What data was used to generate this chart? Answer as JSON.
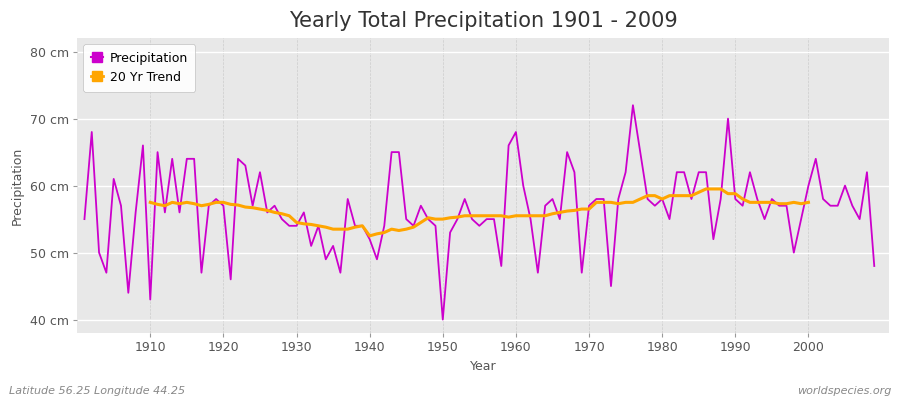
{
  "title": "Yearly Total Precipitation 1901 - 2009",
  "xlabel": "Year",
  "ylabel": "Precipitation",
  "footnote_left": "Latitude 56.25 Longitude 44.25",
  "footnote_right": "worldspecies.org",
  "years": [
    1901,
    1902,
    1903,
    1904,
    1905,
    1906,
    1907,
    1908,
    1909,
    1910,
    1911,
    1912,
    1913,
    1914,
    1915,
    1916,
    1917,
    1918,
    1919,
    1920,
    1921,
    1922,
    1923,
    1924,
    1925,
    1926,
    1927,
    1928,
    1929,
    1930,
    1931,
    1932,
    1933,
    1934,
    1935,
    1936,
    1937,
    1938,
    1939,
    1940,
    1941,
    1942,
    1943,
    1944,
    1945,
    1946,
    1947,
    1948,
    1949,
    1950,
    1951,
    1952,
    1953,
    1954,
    1955,
    1956,
    1957,
    1958,
    1959,
    1960,
    1961,
    1962,
    1963,
    1964,
    1965,
    1966,
    1967,
    1968,
    1969,
    1970,
    1971,
    1972,
    1973,
    1974,
    1975,
    1976,
    1977,
    1978,
    1979,
    1980,
    1981,
    1982,
    1983,
    1984,
    1985,
    1986,
    1987,
    1988,
    1989,
    1990,
    1991,
    1992,
    1993,
    1994,
    1995,
    1996,
    1997,
    1998,
    1999,
    2000,
    2001,
    2002,
    2003,
    2004,
    2005,
    2006,
    2007,
    2008,
    2009
  ],
  "precipitation": [
    55,
    68,
    50,
    47,
    61,
    57,
    44,
    56,
    66,
    43,
    65,
    56,
    64,
    56,
    64,
    64,
    47,
    57,
    58,
    57,
    46,
    64,
    63,
    57,
    62,
    56,
    57,
    55,
    54,
    54,
    56,
    51,
    54,
    49,
    51,
    47,
    58,
    54,
    54,
    52,
    49,
    54,
    65,
    65,
    55,
    54,
    57,
    55,
    54,
    40,
    53,
    55,
    58,
    55,
    54,
    55,
    55,
    48,
    66,
    68,
    60,
    55,
    47,
    57,
    58,
    55,
    65,
    62,
    47,
    57,
    58,
    58,
    45,
    58,
    62,
    72,
    65,
    58,
    57,
    58,
    55,
    62,
    62,
    58,
    62,
    62,
    52,
    58,
    70,
    58,
    57,
    62,
    58,
    55,
    58,
    57,
    57,
    50,
    55,
    60,
    64,
    58,
    57,
    57,
    60,
    57,
    55,
    62,
    48
  ],
  "trend_years": [
    1910,
    1911,
    1912,
    1913,
    1914,
    1915,
    1916,
    1917,
    1918,
    1919,
    1920,
    1921,
    1922,
    1923,
    1924,
    1925,
    1926,
    1927,
    1928,
    1929,
    1930,
    1931,
    1932,
    1933,
    1934,
    1935,
    1936,
    1937,
    1938,
    1939,
    1940,
    1941,
    1942,
    1943,
    1944,
    1945,
    1946,
    1947,
    1948,
    1949,
    1950,
    1951,
    1952,
    1953,
    1954,
    1955,
    1956,
    1957,
    1958,
    1959,
    1960,
    1961,
    1962,
    1963,
    1964,
    1965,
    1966,
    1967,
    1968,
    1969,
    1970,
    1971,
    1972,
    1973,
    1974,
    1975,
    1976,
    1977,
    1978,
    1979,
    1980,
    1981,
    1982,
    1983,
    1984,
    1985,
    1986,
    1987,
    1988,
    1989,
    1990,
    1991,
    1992,
    1993,
    1994,
    1995,
    1996,
    1997,
    1998,
    1999,
    2000
  ],
  "trend": [
    57.5,
    57.2,
    57.0,
    57.5,
    57.3,
    57.5,
    57.3,
    57.0,
    57.2,
    57.5,
    57.5,
    57.2,
    57.1,
    56.8,
    56.7,
    56.5,
    56.3,
    56.0,
    55.8,
    55.5,
    54.5,
    54.3,
    54.2,
    54.0,
    53.8,
    53.5,
    53.5,
    53.5,
    53.8,
    54.0,
    52.5,
    52.8,
    53.0,
    53.5,
    53.3,
    53.5,
    53.8,
    54.5,
    55.2,
    55.0,
    55.0,
    55.2,
    55.3,
    55.5,
    55.5,
    55.5,
    55.5,
    55.5,
    55.5,
    55.3,
    55.5,
    55.5,
    55.5,
    55.5,
    55.5,
    55.8,
    56.0,
    56.2,
    56.3,
    56.5,
    56.5,
    57.5,
    57.5,
    57.5,
    57.3,
    57.5,
    57.5,
    58.0,
    58.5,
    58.5,
    58.0,
    58.5,
    58.5,
    58.5,
    58.5,
    59.0,
    59.5,
    59.5,
    59.5,
    58.8,
    58.8,
    58.0,
    57.5,
    57.5,
    57.5,
    57.5,
    57.3,
    57.3,
    57.5,
    57.3,
    57.5
  ],
  "precip_color": "#CC00CC",
  "trend_color": "#FFA500",
  "bg_color": "#E8E8E8",
  "grid_color_h": "#FFFFFF",
  "grid_color_v": "#CCCCCC",
  "fig_bg": "#FFFFFF",
  "ylim": [
    38,
    82
  ],
  "yticks": [
    40,
    50,
    60,
    70,
    80
  ],
  "ytick_labels": [
    "40 cm",
    "50 cm",
    "60 cm",
    "70 cm",
    "80 cm"
  ],
  "xticks": [
    1910,
    1920,
    1930,
    1940,
    1950,
    1960,
    1970,
    1980,
    1990,
    2000
  ],
  "xtick_labels": [
    "1910",
    "1920",
    "1930",
    "1940",
    "1950",
    "1960",
    "1970",
    "1980",
    "1990",
    "2000"
  ],
  "xlim": [
    1900,
    2011
  ],
  "title_fontsize": 15,
  "label_fontsize": 9,
  "tick_fontsize": 9,
  "footnote_fontsize": 8
}
